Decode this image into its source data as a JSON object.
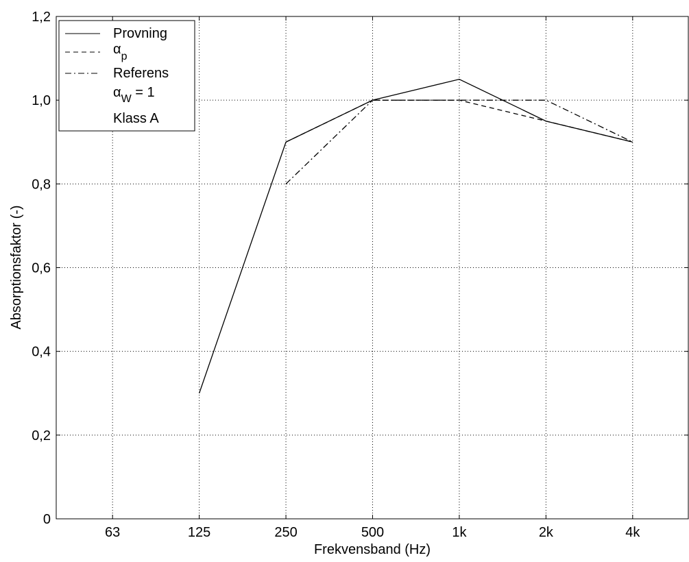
{
  "chart_data": {
    "type": "line",
    "categories": [
      "63",
      "125",
      "250",
      "500",
      "1k",
      "2k",
      "4k"
    ],
    "xlabel": "Frekvensband (Hz)",
    "ylabel": "Absorptionsfaktor (-)",
    "ylim": [
      0,
      1.2
    ],
    "yticks": [
      "0",
      "0,2",
      "0,4",
      "0,6",
      "0,8",
      "1,0",
      "1,2"
    ],
    "grid": true,
    "legend_position": "top-left",
    "series": [
      {
        "name": "Provning",
        "style": "solid",
        "values": [
          null,
          0.3,
          0.9,
          1.0,
          1.05,
          0.95,
          0.9
        ]
      },
      {
        "name": "αp",
        "style": "dashed",
        "values": [
          null,
          null,
          0.9,
          1.0,
          1.0,
          0.95,
          0.9
        ]
      },
      {
        "name": "Referens",
        "style": "dashdot",
        "values": [
          null,
          null,
          0.8,
          1.0,
          1.0,
          1.0,
          0.9
        ]
      }
    ],
    "legend_extra": {
      "alpha_symbol": "α",
      "p_subscript": "p",
      "w_subscript": "W",
      "aw_tail": " = 1",
      "klass": "Klass A"
    },
    "line_color": "#000000",
    "grid_color": "#000000"
  }
}
